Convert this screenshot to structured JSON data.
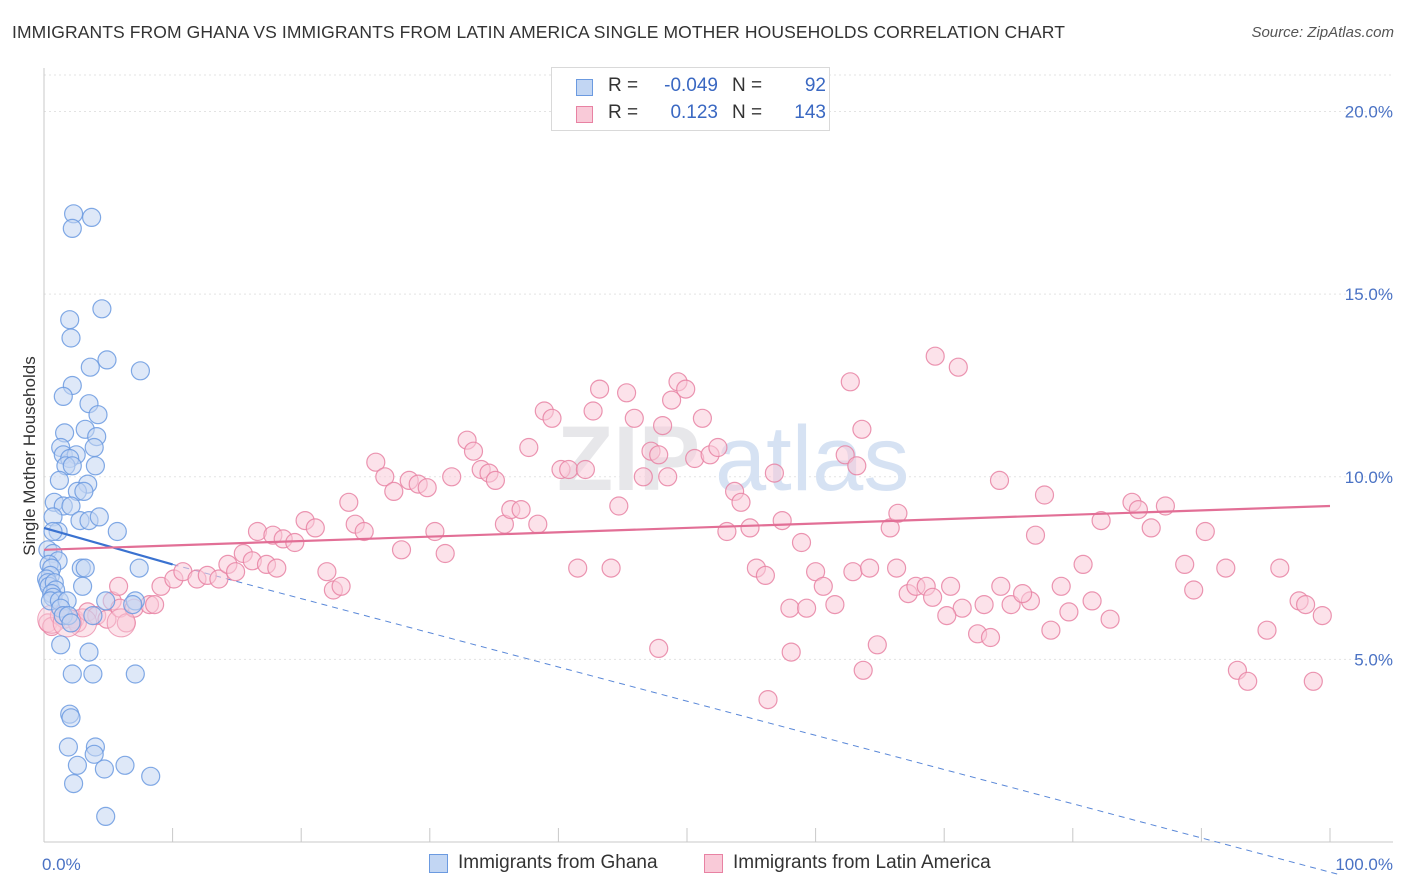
{
  "title": "IMMIGRANTS FROM GHANA VS IMMIGRANTS FROM LATIN AMERICA SINGLE MOTHER HOUSEHOLDS CORRELATION CHART",
  "source": "Source: ZipAtlas.com",
  "watermark": {
    "zip": "ZIP",
    "atlas": "atlas"
  },
  "legend": {
    "rows": [
      {
        "r_label": "R =",
        "r_value": "-0.049",
        "n_label": "N =",
        "n_value": "92",
        "color": "#6b9ae0",
        "fill": "#c2d6f3"
      },
      {
        "r_label": "R =",
        "r_value": "0.123",
        "n_label": "N =",
        "n_value": "143",
        "color": "#e882a3",
        "fill": "#f9cad8"
      }
    ]
  },
  "bottom_legend": [
    {
      "label": "Immigrants from Ghana",
      "color": "#6b9ae0",
      "fill": "#c2d6f3"
    },
    {
      "label": "Immigrants from Latin America",
      "color": "#e882a3",
      "fill": "#f9cad8"
    }
  ],
  "chart_data": {
    "type": "scatter",
    "title": "IMMIGRANTS FROM GHANA VS IMMIGRANTS FROM LATIN AMERICA SINGLE MOTHER HOUSEHOLDS CORRELATION CHART",
    "xlabel": "",
    "ylabel": "Single Mother Households",
    "xlim": [
      0,
      100
    ],
    "ylim": [
      0,
      21
    ],
    "x_tick_labels": [
      {
        "value": 0,
        "label": "0.0%"
      },
      {
        "value": 100,
        "label": "100.0%"
      }
    ],
    "y_tick_labels": [
      {
        "value": 5,
        "label": "5.0%"
      },
      {
        "value": 10,
        "label": "10.0%"
      },
      {
        "value": 15,
        "label": "15.0%"
      },
      {
        "value": 20,
        "label": "20.0%"
      }
    ],
    "x_minor_ticks": [
      10,
      20,
      30,
      40,
      50,
      60,
      70,
      80,
      90,
      100
    ],
    "grid": true,
    "series": [
      {
        "name": "Immigrants from Ghana",
        "color": "#6b9ae0",
        "fill": "#c2d6f3",
        "trend": {
          "x0": 0,
          "y0": 8.6,
          "x1": 10,
          "y1": 7.6,
          "dash_to_x": 100,
          "dash_to_y": -0.5
        },
        "points": [
          [
            2.3,
            17.2
          ],
          [
            2.2,
            16.8
          ],
          [
            3.7,
            17.1
          ],
          [
            2.0,
            14.3
          ],
          [
            2.1,
            13.8
          ],
          [
            4.5,
            14.6
          ],
          [
            3.6,
            13.0
          ],
          [
            4.9,
            13.2
          ],
          [
            7.5,
            12.9
          ],
          [
            2.2,
            12.5
          ],
          [
            1.5,
            12.2
          ],
          [
            3.5,
            12.0
          ],
          [
            3.2,
            11.3
          ],
          [
            4.1,
            11.1
          ],
          [
            1.6,
            11.2
          ],
          [
            4.2,
            11.7
          ],
          [
            3.9,
            10.8
          ],
          [
            1.3,
            10.8
          ],
          [
            1.5,
            10.6
          ],
          [
            2.5,
            10.6
          ],
          [
            2.0,
            10.5
          ],
          [
            1.7,
            10.3
          ],
          [
            2.2,
            10.3
          ],
          [
            4.0,
            10.3
          ],
          [
            1.2,
            9.9
          ],
          [
            3.4,
            9.8
          ],
          [
            2.6,
            9.6
          ],
          [
            3.1,
            9.6
          ],
          [
            0.8,
            9.3
          ],
          [
            1.5,
            9.2
          ],
          [
            2.1,
            9.2
          ],
          [
            0.7,
            8.9
          ],
          [
            2.8,
            8.8
          ],
          [
            3.5,
            8.8
          ],
          [
            4.3,
            8.9
          ],
          [
            1.1,
            8.5
          ],
          [
            0.7,
            8.5
          ],
          [
            5.7,
            8.5
          ],
          [
            0.3,
            8.0
          ],
          [
            0.7,
            7.9
          ],
          [
            1.1,
            7.7
          ],
          [
            0.4,
            7.6
          ],
          [
            0.6,
            7.5
          ],
          [
            2.9,
            7.5
          ],
          [
            3.2,
            7.5
          ],
          [
            7.4,
            7.5
          ],
          [
            0.5,
            7.3
          ],
          [
            0.2,
            7.2
          ],
          [
            0.3,
            7.1
          ],
          [
            0.4,
            7.0
          ],
          [
            0.8,
            7.1
          ],
          [
            0.9,
            6.9
          ],
          [
            0.6,
            6.8
          ],
          [
            3.0,
            7.0
          ],
          [
            0.7,
            6.7
          ],
          [
            0.5,
            6.6
          ],
          [
            1.2,
            6.6
          ],
          [
            1.8,
            6.6
          ],
          [
            4.8,
            6.6
          ],
          [
            7.1,
            6.6
          ],
          [
            6.9,
            6.5
          ],
          [
            1.3,
            6.4
          ],
          [
            1.5,
            6.2
          ],
          [
            1.9,
            6.2
          ],
          [
            3.8,
            6.2
          ],
          [
            2.1,
            6.0
          ],
          [
            1.3,
            5.4
          ],
          [
            3.5,
            5.2
          ],
          [
            2.2,
            4.6
          ],
          [
            3.8,
            4.6
          ],
          [
            7.1,
            4.6
          ],
          [
            2.0,
            3.5
          ],
          [
            2.1,
            3.4
          ],
          [
            1.9,
            2.6
          ],
          [
            4.0,
            2.6
          ],
          [
            3.9,
            2.4
          ],
          [
            2.6,
            2.1
          ],
          [
            4.7,
            2.0
          ],
          [
            6.3,
            2.1
          ],
          [
            8.3,
            1.8
          ],
          [
            2.3,
            1.6
          ],
          [
            4.8,
            0.7
          ]
        ]
      },
      {
        "name": "Immigrants from Latin America",
        "color": "#e882a3",
        "fill": "#f9cad8",
        "trend": {
          "x0": 0,
          "y0": 8.0,
          "x1": 100,
          "y1": 9.2
        },
        "points": [
          [
            0.3,
            6.0
          ],
          [
            0.6,
            5.9
          ],
          [
            1.2,
            6.2
          ],
          [
            1.6,
            6.1
          ],
          [
            2.4,
            6.1
          ],
          [
            2.6,
            6.0
          ],
          [
            3.4,
            6.3
          ],
          [
            4.1,
            6.2
          ],
          [
            4.9,
            6.1
          ],
          [
            5.3,
            6.6
          ],
          [
            5.9,
            6.4
          ],
          [
            6.4,
            6.0
          ],
          [
            7.0,
            6.4
          ],
          [
            5.8,
            7.0
          ],
          [
            8.2,
            6.5
          ],
          [
            8.6,
            6.5
          ],
          [
            9.1,
            7.0
          ],
          [
            10.1,
            7.2
          ],
          [
            10.8,
            7.4
          ],
          [
            11.9,
            7.2
          ],
          [
            12.7,
            7.3
          ],
          [
            13.6,
            7.2
          ],
          [
            14.3,
            7.6
          ],
          [
            14.9,
            7.4
          ],
          [
            15.5,
            7.9
          ],
          [
            16.2,
            7.7
          ],
          [
            17.3,
            7.6
          ],
          [
            18.1,
            7.5
          ],
          [
            16.6,
            8.5
          ],
          [
            17.8,
            8.4
          ],
          [
            18.6,
            8.3
          ],
          [
            19.5,
            8.2
          ],
          [
            20.3,
            8.8
          ],
          [
            21.1,
            8.6
          ],
          [
            22.0,
            7.4
          ],
          [
            22.5,
            6.9
          ],
          [
            23.1,
            7.0
          ],
          [
            23.7,
            9.3
          ],
          [
            24.2,
            8.7
          ],
          [
            24.9,
            8.5
          ],
          [
            25.8,
            10.4
          ],
          [
            26.5,
            10.0
          ],
          [
            27.2,
            9.6
          ],
          [
            27.8,
            8.0
          ],
          [
            28.4,
            9.9
          ],
          [
            29.1,
            9.8
          ],
          [
            29.8,
            9.7
          ],
          [
            30.4,
            8.5
          ],
          [
            31.2,
            7.9
          ],
          [
            31.7,
            10.0
          ],
          [
            32.9,
            11.0
          ],
          [
            33.4,
            10.7
          ],
          [
            34.0,
            10.2
          ],
          [
            34.6,
            10.1
          ],
          [
            35.1,
            9.9
          ],
          [
            35.8,
            8.7
          ],
          [
            36.3,
            9.1
          ],
          [
            37.1,
            9.1
          ],
          [
            37.7,
            10.8
          ],
          [
            38.4,
            8.7
          ],
          [
            38.9,
            11.8
          ],
          [
            39.5,
            11.6
          ],
          [
            40.2,
            10.2
          ],
          [
            40.8,
            10.2
          ],
          [
            41.5,
            7.5
          ],
          [
            42.1,
            10.2
          ],
          [
            42.7,
            11.8
          ],
          [
            43.2,
            12.4
          ],
          [
            44.1,
            7.5
          ],
          [
            44.7,
            9.2
          ],
          [
            45.3,
            12.3
          ],
          [
            45.9,
            11.6
          ],
          [
            46.6,
            10.0
          ],
          [
            47.2,
            10.7
          ],
          [
            47.8,
            10.6
          ],
          [
            48.5,
            10.0
          ],
          [
            48.1,
            11.4
          ],
          [
            48.8,
            12.1
          ],
          [
            49.3,
            12.6
          ],
          [
            49.9,
            12.4
          ],
          [
            50.6,
            10.5
          ],
          [
            51.2,
            11.6
          ],
          [
            51.8,
            10.6
          ],
          [
            52.4,
            10.8
          ],
          [
            53.1,
            8.5
          ],
          [
            53.7,
            9.6
          ],
          [
            54.2,
            9.3
          ],
          [
            54.9,
            8.6
          ],
          [
            55.4,
            7.5
          ],
          [
            56.1,
            7.3
          ],
          [
            56.8,
            10.1
          ],
          [
            57.4,
            8.8
          ],
          [
            58.0,
            6.4
          ],
          [
            59.3,
            6.4
          ],
          [
            60.0,
            7.4
          ],
          [
            58.9,
            8.2
          ],
          [
            60.6,
            7.0
          ],
          [
            61.5,
            6.5
          ],
          [
            62.3,
            10.6
          ],
          [
            62.9,
            7.4
          ],
          [
            63.6,
            11.3
          ],
          [
            64.2,
            7.5
          ],
          [
            64.8,
            5.4
          ],
          [
            58.1,
            5.2
          ],
          [
            56.3,
            3.9
          ],
          [
            47.8,
            5.3
          ],
          [
            65.8,
            8.6
          ],
          [
            66.3,
            7.5
          ],
          [
            67.2,
            6.8
          ],
          [
            67.8,
            7.0
          ],
          [
            68.6,
            7.0
          ],
          [
            69.1,
            6.7
          ],
          [
            70.5,
            7.0
          ],
          [
            71.4,
            6.4
          ],
          [
            72.6,
            5.7
          ],
          [
            73.6,
            5.6
          ],
          [
            74.4,
            7.0
          ],
          [
            75.2,
            6.5
          ],
          [
            76.7,
            6.6
          ],
          [
            77.1,
            8.4
          ],
          [
            78.3,
            5.8
          ],
          [
            79.1,
            7.0
          ],
          [
            79.7,
            6.3
          ],
          [
            80.8,
            7.6
          ],
          [
            81.5,
            6.6
          ],
          [
            82.9,
            6.1
          ],
          [
            84.6,
            9.3
          ],
          [
            86.1,
            8.6
          ],
          [
            87.2,
            9.2
          ],
          [
            88.7,
            7.6
          ],
          [
            89.4,
            6.9
          ],
          [
            90.3,
            8.5
          ],
          [
            92.8,
            4.7
          ],
          [
            93.6,
            4.4
          ],
          [
            95.1,
            5.8
          ],
          [
            97.6,
            6.6
          ],
          [
            98.1,
            6.5
          ],
          [
            99.4,
            6.2
          ],
          [
            63.7,
            4.7
          ],
          [
            62.7,
            12.6
          ],
          [
            69.3,
            13.3
          ],
          [
            71.1,
            13.0
          ],
          [
            63.2,
            10.3
          ],
          [
            66.4,
            9.0
          ],
          [
            74.3,
            9.9
          ],
          [
            77.8,
            9.5
          ],
          [
            85.1,
            9.1
          ],
          [
            82.2,
            8.8
          ],
          [
            76.1,
            6.8
          ],
          [
            73.1,
            6.5
          ],
          [
            70.2,
            6.2
          ],
          [
            96.1,
            7.5
          ],
          [
            98.7,
            4.4
          ],
          [
            91.9,
            7.5
          ]
        ]
      }
    ]
  }
}
